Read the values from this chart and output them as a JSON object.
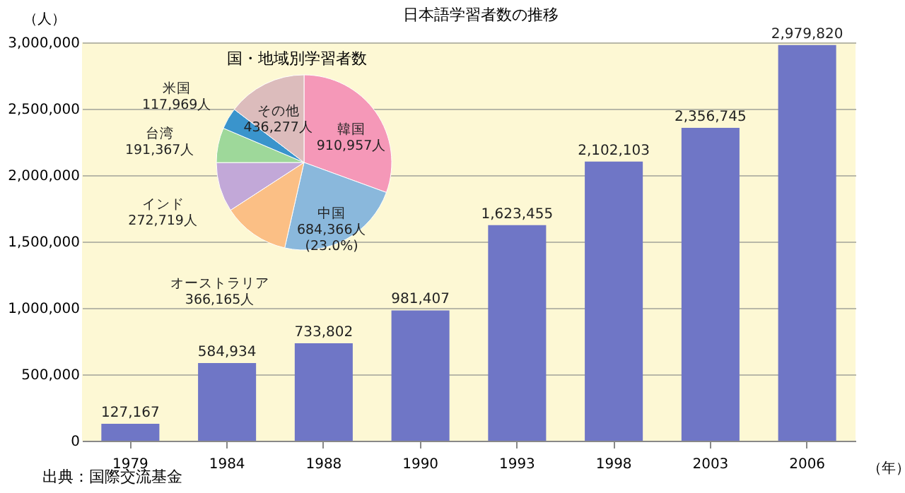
{
  "chart_data": [
    {
      "type": "bar",
      "title": "日本語学習者数の推移",
      "xlabel": "（年）",
      "ylabel": "（人）",
      "categories": [
        "1979",
        "1984",
        "1988",
        "1990",
        "1993",
        "1998",
        "2003",
        "2006"
      ],
      "values": [
        127167,
        584934,
        733802,
        981407,
        1623455,
        2102103,
        2356745,
        2979820
      ],
      "color": "#6f76c6",
      "value_labels": [
        "127,167",
        "584,934",
        "733,802",
        "981,407",
        "1,623,455",
        "2,102,103",
        "2,356,745",
        "2,979,820"
      ],
      "ylim": [
        0,
        3000000
      ],
      "yticks": [
        0,
        {
          "value": 500000,
          "label": "500,000"
        },
        {
          "value": 1000000,
          "label": "1,000,000"
        },
        {
          "value": 1500000,
          "label": "1,500,000"
        },
        {
          "value": 2000000,
          "label": "2,000,000"
        },
        {
          "value": 2500000,
          "label": "2,500,000"
        },
        {
          "value": 3000000,
          "label": "3,000,000"
        }
      ],
      "grid": "y",
      "annotations": [
        "出典：国際交流基金"
      ]
    },
    {
      "type": "pie",
      "title": "国・地域別学習者数",
      "categories": [
        "韓国",
        "中国",
        "オーストラリア",
        "インド",
        "台湾",
        "米国",
        "その他"
      ],
      "values": [
        910957,
        684366,
        366165,
        272719,
        191367,
        117969,
        436277
      ],
      "value_labels": [
        "910,957人",
        "684,366人\n(23.0%)",
        "366,165人",
        "272,719人",
        "191,367人",
        "117,969人",
        "436,277人"
      ],
      "colors": [
        "#f598b8",
        "#8ab8dc",
        "#fbbf85",
        "#c2a8d8",
        "#9ed89a",
        "#3a94cc",
        "#dcbcbc"
      ]
    }
  ]
}
